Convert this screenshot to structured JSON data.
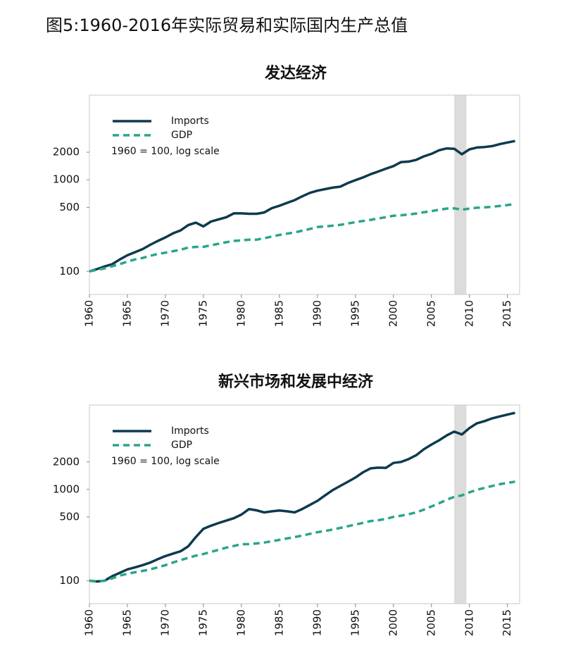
{
  "page_title": "图5:1960-2016年实际贸易和实际国内生产总值",
  "chart_data": [
    {
      "type": "line",
      "title": "发达经济",
      "note": "1960 = 100, log scale",
      "yscale": "log",
      "legend": "upper left",
      "shaded_range": [
        2008,
        2009.6
      ],
      "x": [
        1960,
        1961,
        1962,
        1963,
        1964,
        1965,
        1966,
        1967,
        1968,
        1969,
        1970,
        1971,
        1972,
        1973,
        1974,
        1975,
        1976,
        1977,
        1978,
        1979,
        1980,
        1981,
        1982,
        1983,
        1984,
        1985,
        1986,
        1987,
        1988,
        1989,
        1990,
        1991,
        1992,
        1993,
        1994,
        1995,
        1996,
        1997,
        1998,
        1999,
        2000,
        2001,
        2002,
        2003,
        2004,
        2005,
        2006,
        2007,
        2008,
        2009,
        2010,
        2011,
        2012,
        2013,
        2014,
        2015,
        2016
      ],
      "series": [
        {
          "name": "Imports",
          "color": "#0d3a4e",
          "dash": false,
          "values": [
            100,
            106,
            113,
            120,
            135,
            150,
            162,
            175,
            195,
            215,
            235,
            260,
            280,
            320,
            340,
            310,
            350,
            370,
            390,
            430,
            430,
            425,
            425,
            440,
            490,
            520,
            560,
            600,
            660,
            720,
            760,
            790,
            820,
            840,
            920,
            990,
            1060,
            1150,
            1230,
            1320,
            1410,
            1560,
            1580,
            1650,
            1800,
            1920,
            2100,
            2200,
            2180,
            1900,
            2150,
            2250,
            2280,
            2330,
            2450,
            2550,
            2650
          ]
        },
        {
          "name": "GDP",
          "color": "#2aa58a",
          "dash": true,
          "values": [
            100,
            104,
            108,
            114,
            120,
            128,
            135,
            140,
            148,
            155,
            160,
            166,
            172,
            182,
            185,
            185,
            193,
            200,
            208,
            215,
            218,
            222,
            222,
            230,
            240,
            250,
            258,
            266,
            278,
            290,
            305,
            310,
            315,
            322,
            333,
            345,
            355,
            365,
            378,
            390,
            405,
            410,
            418,
            428,
            442,
            455,
            470,
            485,
            487,
            470,
            485,
            495,
            500,
            508,
            518,
            530,
            545
          ]
        }
      ],
      "xlim": [
        1960,
        2016.6
      ],
      "ylim": [
        56,
        8400
      ],
      "xticks": [
        1960,
        1965,
        1970,
        1975,
        1980,
        1985,
        1990,
        1995,
        2000,
        2005,
        2010,
        2015
      ],
      "yticks": [
        100,
        500,
        1000,
        2000
      ]
    },
    {
      "type": "line",
      "title": "新兴市场和发展中经济",
      "note": "1960 = 100, log scale",
      "yscale": "log",
      "legend": "upper left",
      "shaded_range": [
        2008,
        2009.6
      ],
      "x": [
        1960,
        1961,
        1962,
        1963,
        1964,
        1965,
        1966,
        1967,
        1968,
        1969,
        1970,
        1971,
        1972,
        1973,
        1974,
        1975,
        1976,
        1977,
        1978,
        1979,
        1980,
        1981,
        1982,
        1983,
        1984,
        1985,
        1986,
        1987,
        1988,
        1989,
        1990,
        1991,
        1992,
        1993,
        1994,
        1995,
        1996,
        1997,
        1998,
        1999,
        2000,
        2001,
        2002,
        2003,
        2004,
        2005,
        2006,
        2007,
        2008,
        2009,
        2010,
        2011,
        2012,
        2013,
        2014,
        2015,
        2016
      ],
      "series": [
        {
          "name": "Imports",
          "color": "#0d3a4e",
          "dash": false,
          "values": [
            100,
            98,
            100,
            112,
            122,
            133,
            140,
            148,
            158,
            172,
            186,
            198,
            210,
            238,
            300,
            370,
            400,
            428,
            455,
            483,
            530,
            609,
            590,
            560,
            575,
            588,
            575,
            560,
            610,
            676,
            750,
            860,
            980,
            1090,
            1210,
            1350,
            1540,
            1700,
            1730,
            1720,
            1950,
            2000,
            2150,
            2370,
            2750,
            3100,
            3450,
            3900,
            4300,
            4000,
            4700,
            5300,
            5600,
            6000,
            6300,
            6600,
            6900
          ]
        },
        {
          "name": "GDP",
          "color": "#2aa58a",
          "dash": true,
          "values": [
            100,
            98,
            100,
            106,
            114,
            119,
            124,
            128,
            133,
            140,
            148,
            158,
            168,
            178,
            188,
            196,
            207,
            218,
            230,
            240,
            251,
            252,
            256,
            262,
            270,
            280,
            290,
            300,
            312,
            326,
            340,
            350,
            364,
            378,
            395,
            412,
            430,
            450,
            460,
            475,
            500,
            515,
            535,
            560,
            600,
            650,
            705,
            770,
            830,
            860,
            930,
            990,
            1040,
            1090,
            1140,
            1180,
            1215
          ]
        }
      ],
      "xlim": [
        1960,
        2016.6
      ],
      "ylim": [
        56,
        8400
      ],
      "xticks": [
        1960,
        1965,
        1970,
        1975,
        1980,
        1985,
        1990,
        1995,
        2000,
        2005,
        2010,
        2015
      ],
      "yticks": [
        100,
        500,
        1000,
        2000
      ]
    }
  ]
}
